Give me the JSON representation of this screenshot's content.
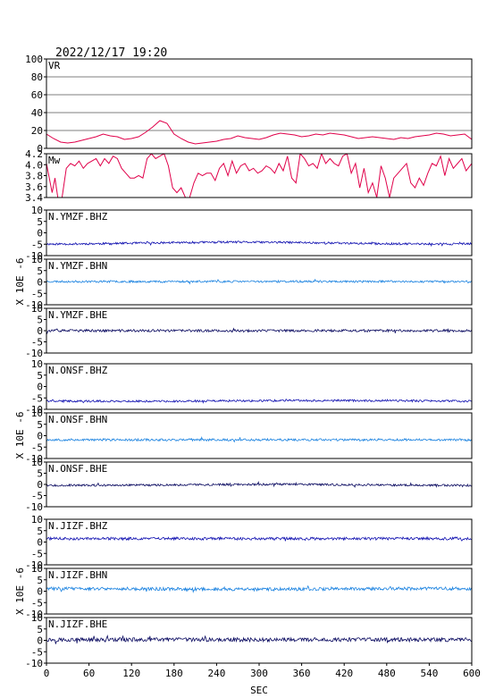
{
  "title": "2022/12/17  19:20",
  "colors": {
    "vr": "#e0004a",
    "mw": "#e0004a",
    "bhz": "#1010b0",
    "bhn": "#1a82e0",
    "bhe": "#0a0a60"
  },
  "chart_data": [
    {
      "type": "line",
      "id": "vr",
      "label": "VR",
      "color": "#e0004a",
      "xlim": [
        0,
        600
      ],
      "ylim": [
        0,
        100
      ],
      "yticks": [
        "100",
        "80",
        "60",
        "40",
        "20",
        "0"
      ],
      "grid": true,
      "series": [
        {
          "x": [
            0,
            10,
            20,
            30,
            40,
            50,
            60,
            70,
            80,
            90,
            100,
            110,
            120,
            130,
            140,
            150,
            160,
            170,
            180,
            190,
            200,
            210,
            220,
            230,
            240,
            250,
            260,
            270,
            280,
            290,
            300,
            310,
            320,
            330,
            340,
            350,
            360,
            370,
            380,
            390,
            400,
            410,
            420,
            430,
            440,
            450,
            460,
            470,
            480,
            490,
            500,
            510,
            520,
            530,
            540,
            550,
            560,
            570,
            580,
            590,
            600
          ],
          "y": [
            16,
            11,
            7,
            6,
            7,
            9,
            11,
            13,
            16,
            14,
            13,
            10,
            11,
            13,
            18,
            24,
            31,
            28,
            16,
            11,
            7,
            5,
            6,
            7,
            8,
            10,
            11,
            14,
            12,
            11,
            10,
            12,
            15,
            17,
            16,
            15,
            13,
            14,
            16,
            15,
            17,
            16,
            15,
            13,
            11,
            12,
            13,
            12,
            11,
            10,
            12,
            11,
            13,
            14,
            15,
            17,
            16,
            14,
            15,
            16,
            10
          ]
        }
      ]
    },
    {
      "type": "line",
      "id": "mw",
      "label": "Mw",
      "color": "#e0004a",
      "xlim": [
        0,
        600
      ],
      "ylim": [
        3.3,
        4.2
      ],
      "yticks": [
        "4.2",
        "4.0",
        "3.8",
        "3.6",
        "3.4"
      ],
      "grid": false,
      "series": [
        {
          "x": [
            0,
            8,
            12,
            16,
            22,
            28,
            34,
            40,
            46,
            52,
            58,
            64,
            70,
            76,
            82,
            88,
            94,
            100,
            106,
            112,
            118,
            124,
            130,
            136,
            142,
            148,
            154,
            160,
            166,
            172,
            178,
            184,
            190,
            196,
            202,
            208,
            214,
            220,
            226,
            232,
            238,
            244,
            250,
            256,
            262,
            268,
            274,
            280,
            286,
            292,
            298,
            304,
            310,
            316,
            322,
            328,
            334,
            340,
            346,
            352,
            358,
            364,
            370,
            376,
            382,
            388,
            394,
            400,
            406,
            412,
            418,
            424,
            430,
            436,
            442,
            448,
            454,
            460,
            466,
            472,
            478,
            484,
            490,
            496,
            502,
            508,
            514,
            520,
            526,
            532,
            538,
            544,
            550,
            556,
            562,
            568,
            574,
            580,
            586,
            592,
            600
          ],
          "y": [
            4.0,
            3.4,
            3.7,
            3.3,
            3.3,
            3.9,
            4.0,
            3.95,
            4.05,
            3.9,
            4.0,
            4.05,
            4.1,
            3.95,
            4.1,
            4.0,
            4.15,
            4.1,
            3.9,
            3.8,
            3.7,
            3.7,
            3.75,
            3.7,
            4.1,
            4.2,
            4.1,
            4.15,
            4.2,
            3.95,
            3.5,
            3.4,
            3.5,
            3.3,
            3.3,
            3.6,
            3.8,
            3.75,
            3.8,
            3.8,
            3.65,
            3.9,
            4.0,
            3.75,
            4.05,
            3.8,
            3.95,
            4.0,
            3.85,
            3.9,
            3.8,
            3.85,
            3.95,
            3.9,
            3.8,
            4.0,
            3.85,
            4.15,
            3.7,
            3.6,
            4.2,
            4.1,
            3.95,
            4.0,
            3.9,
            4.2,
            4.0,
            4.1,
            4.0,
            3.95,
            4.15,
            4.2,
            3.8,
            4.0,
            3.5,
            3.9,
            3.4,
            3.6,
            3.3,
            3.95,
            3.7,
            3.3,
            3.7,
            3.8,
            3.9,
            4.0,
            3.6,
            3.5,
            3.7,
            3.55,
            3.8,
            4.0,
            3.95,
            4.15,
            3.75,
            4.1,
            3.9,
            4.0,
            4.1,
            3.85,
            4.0
          ]
        }
      ]
    },
    {
      "type": "line",
      "id": "ymzf-bhz",
      "label": "N.YMZF.BHZ",
      "channel": "bhz",
      "color": "#1010b0",
      "xlim": [
        0,
        600
      ],
      "ylim": [
        -10,
        10
      ],
      "yticks": [
        "10",
        "5",
        "0",
        "-5",
        "-10"
      ],
      "level": -4.5,
      "noise": 0.45,
      "drift": 0.8,
      "seed": 11
    },
    {
      "type": "line",
      "id": "ymzf-bhn",
      "label": "N.YMZF.BHN",
      "channel": "bhn",
      "color": "#1a82e0",
      "xlim": [
        0,
        600
      ],
      "ylim": [
        -10,
        10
      ],
      "yticks": [
        "10",
        "5",
        "0",
        "-5",
        "-10"
      ],
      "level": 0.2,
      "noise": 0.45,
      "drift": 0.0,
      "seed": 23
    },
    {
      "type": "line",
      "id": "ymzf-bhe",
      "label": "N.YMZF.BHE",
      "channel": "bhe",
      "color": "#0a0a60",
      "xlim": [
        0,
        600
      ],
      "ylim": [
        -10,
        10
      ],
      "yticks": [
        "10",
        "5",
        "0",
        "-5",
        "-10"
      ],
      "level": 0.0,
      "noise": 0.55,
      "drift": 0.0,
      "seed": 37
    },
    {
      "type": "line",
      "id": "onsf-bhz",
      "label": "N.ONSF.BHZ",
      "channel": "bhz",
      "color": "#1010b0",
      "xlim": [
        0,
        600
      ],
      "ylim": [
        -10,
        10
      ],
      "yticks": [
        "10",
        "5",
        "0",
        "-5",
        "-10"
      ],
      "level": -6.3,
      "noise": 0.45,
      "drift": 0.3,
      "seed": 41
    },
    {
      "type": "line",
      "id": "onsf-bhn",
      "label": "N.ONSF.BHN",
      "channel": "bhn",
      "color": "#1a82e0",
      "xlim": [
        0,
        600
      ],
      "ylim": [
        -10,
        10
      ],
      "yticks": [
        "10",
        "5",
        "0",
        "-5",
        "-10"
      ],
      "level": -1.8,
      "noise": 0.5,
      "drift": 0.0,
      "seed": 53
    },
    {
      "type": "line",
      "id": "onsf-bhe",
      "label": "N.ONSF.BHE",
      "channel": "bhe",
      "color": "#0a0a60",
      "xlim": [
        0,
        600
      ],
      "ylim": [
        -10,
        10
      ],
      "yticks": [
        "10",
        "5",
        "0",
        "-5",
        "-10"
      ],
      "level": -0.2,
      "noise": 0.45,
      "drift": 0.4,
      "seed": 67
    },
    {
      "type": "line",
      "id": "jizf-bhz",
      "label": "N.JIZF.BHZ",
      "channel": "bhz",
      "color": "#1010b0",
      "xlim": [
        0,
        600
      ],
      "ylim": [
        -10,
        10
      ],
      "yticks": [
        "10",
        "5",
        "0",
        "-5",
        "-10"
      ],
      "level": 1.5,
      "noise": 0.6,
      "drift": 0.0,
      "seed": 71
    },
    {
      "type": "line",
      "id": "jizf-bhn",
      "label": "N.JIZF.BHN",
      "channel": "bhn",
      "color": "#1a82e0",
      "xlim": [
        0,
        600
      ],
      "ylim": [
        -10,
        10
      ],
      "yticks": [
        "10",
        "5",
        "0",
        "-5",
        "-10"
      ],
      "level": 1.0,
      "noise": 0.7,
      "drift": 0.3,
      "seed": 83
    },
    {
      "type": "line",
      "id": "jizf-bhe",
      "label": "N.JIZF.BHE",
      "channel": "bhe",
      "color": "#0a0a60",
      "xlim": [
        0,
        600
      ],
      "ylim": [
        -10,
        10
      ],
      "yticks": [
        "10",
        "5",
        "0",
        "-5",
        "-10"
      ],
      "level": 0.3,
      "noise": 0.85,
      "drift": 0.0,
      "seed": 97
    }
  ],
  "ylabel": "X 10E -6",
  "xaxis": {
    "xlim": [
      0,
      600
    ],
    "ticks": [
      "0",
      "60",
      "120",
      "180",
      "240",
      "300",
      "360",
      "420",
      "480",
      "540",
      "600"
    ],
    "label": "SEC"
  }
}
